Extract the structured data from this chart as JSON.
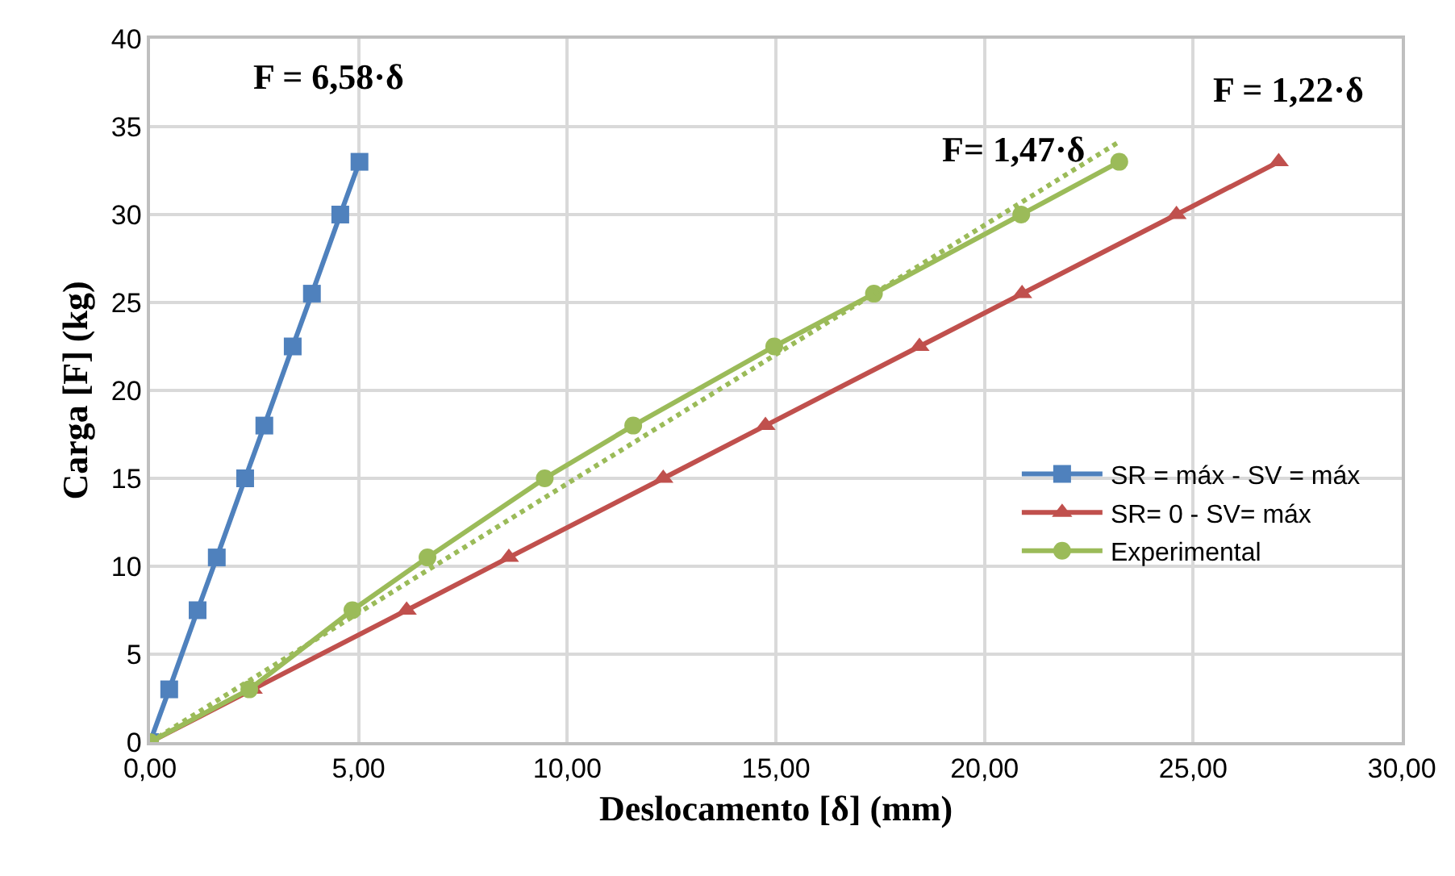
{
  "chart_data": {
    "type": "line",
    "xlabel": "Deslocamento [δ] (mm)",
    "ylabel": "Carga [F] (kg)",
    "series": [
      {
        "name": "SR = máx - SV = máx",
        "color": "#4f81bd",
        "marker": "square",
        "x": [
          0,
          0.46,
          1.14,
          1.6,
          2.28,
          2.74,
          3.42,
          3.88,
          4.56,
          5.02
        ],
        "values": [
          0,
          3,
          7.5,
          10.5,
          15,
          18,
          22.5,
          25.5,
          30,
          33
        ]
      },
      {
        "name": "SR= 0 - SV= máx",
        "color": "#c0504d",
        "marker": "triangle",
        "x": [
          0,
          2.46,
          6.15,
          8.6,
          12.3,
          14.75,
          18.44,
          20.9,
          24.6,
          27.05
        ],
        "values": [
          0,
          3,
          7.5,
          10.5,
          15,
          18,
          22.5,
          25.5,
          30,
          33
        ]
      },
      {
        "name": "Experimental",
        "color": "#9bbb59",
        "marker": "circle",
        "x": [
          0,
          2.38,
          4.85,
          6.65,
          9.46,
          11.58,
          14.96,
          17.35,
          20.88,
          23.23
        ],
        "values": [
          0,
          3,
          7.5,
          10.5,
          15,
          18,
          22.5,
          25.5,
          30,
          33
        ]
      },
      {
        "color": "#9bbb59",
        "marker": "none",
        "line_style": "dotted",
        "x": [
          0,
          23.2
        ],
        "values": [
          0,
          34.1
        ]
      }
    ],
    "annotations": [
      "F = 6,58·δ",
      "F= 1,47·δ",
      "F = 1,22·δ"
    ],
    "xlim": [
      0,
      30
    ],
    "ylim": [
      0,
      40
    ],
    "xticks": [
      {
        "value": 0,
        "label": "0,00"
      },
      {
        "value": 5,
        "label": "5,00"
      },
      {
        "value": 10,
        "label": "10,00"
      },
      {
        "value": 15,
        "label": "15,00"
      },
      {
        "value": 20,
        "label": "20,00"
      },
      {
        "value": 25,
        "label": "25,00"
      },
      {
        "value": 30,
        "label": "30,00"
      }
    ],
    "yticks": [
      0,
      5,
      10,
      15,
      20,
      25,
      30,
      35,
      40
    ],
    "grid": true,
    "legend": "right"
  }
}
